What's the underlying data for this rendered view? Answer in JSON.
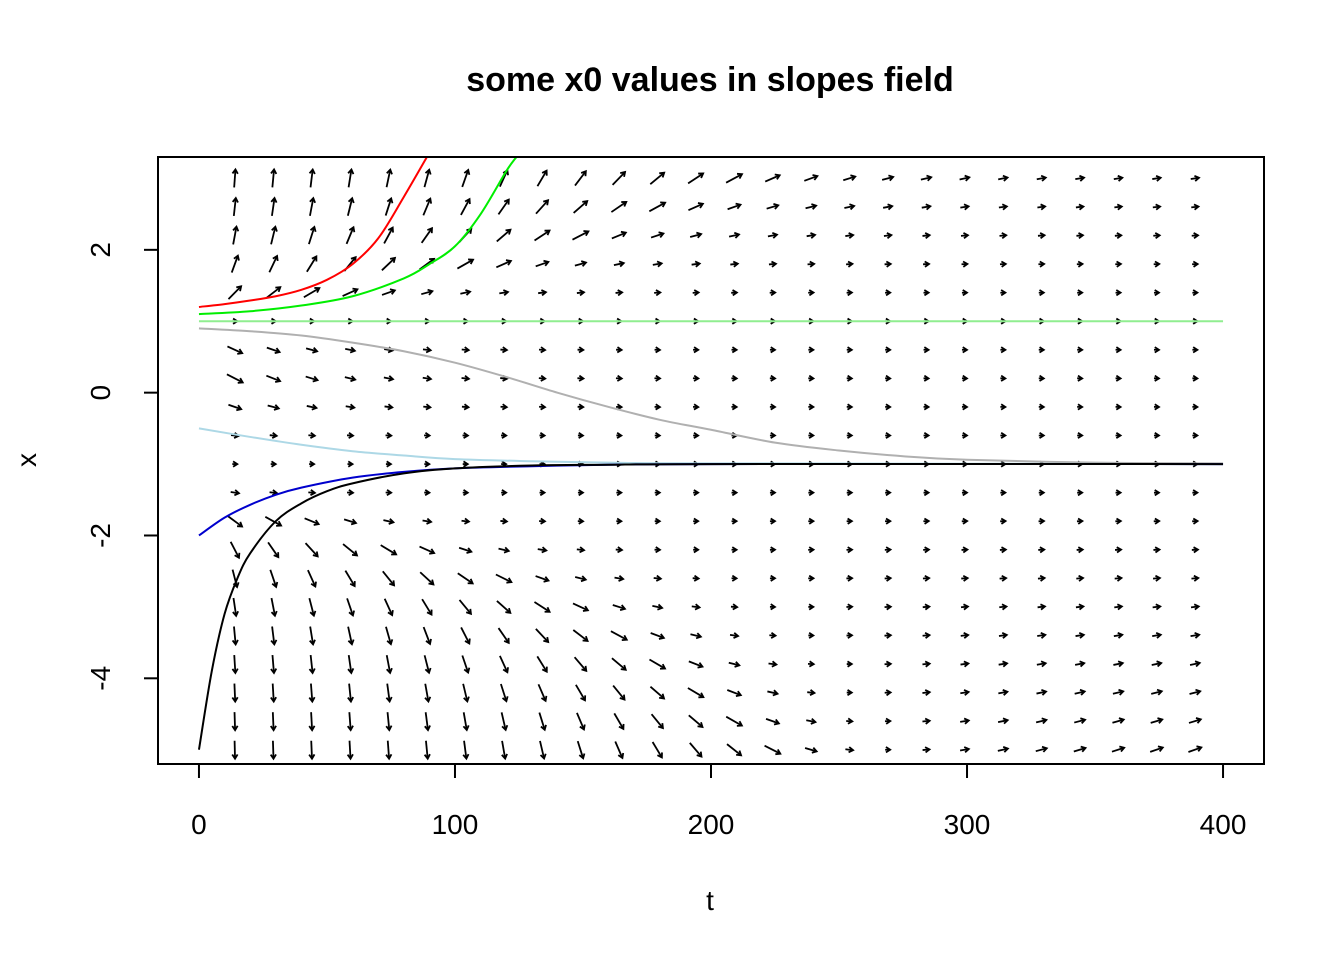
{
  "chart_data": {
    "type": "line",
    "title": "some x0 values in slopes field",
    "xlabel": "t",
    "ylabel": "x",
    "xlim": [
      -16,
      416
    ],
    "ylim": [
      -5.2,
      3.3
    ],
    "x_ticks": [
      {
        "value": 0,
        "label": "0"
      },
      {
        "value": 100,
        "label": "100"
      },
      {
        "value": 200,
        "label": "200"
      },
      {
        "value": 300,
        "label": "300"
      },
      {
        "value": 400,
        "label": "400"
      }
    ],
    "y_ticks": [
      {
        "value": -4,
        "label": "-4"
      },
      {
        "value": -2,
        "label": "-2"
      },
      {
        "value": 0,
        "label": "0"
      },
      {
        "value": 2,
        "label": "2"
      }
    ],
    "grid": false,
    "legend": "none",
    "series": [
      {
        "color": "#ff0000",
        "x0": 1.2,
        "points": [
          [
            0,
            1.2
          ],
          [
            10,
            1.24
          ],
          [
            20,
            1.29
          ],
          [
            30,
            1.35
          ],
          [
            40,
            1.44
          ],
          [
            50,
            1.58
          ],
          [
            60,
            1.8
          ],
          [
            70,
            2.16
          ],
          [
            80,
            2.74
          ],
          [
            90,
            3.36
          ]
        ]
      },
      {
        "color": "#00ee00",
        "x0": 1.1,
        "points": [
          [
            0,
            1.1
          ],
          [
            20,
            1.14
          ],
          [
            40,
            1.22
          ],
          [
            60,
            1.35
          ],
          [
            80,
            1.6
          ],
          [
            90,
            1.8
          ],
          [
            100,
            2.05
          ],
          [
            110,
            2.5
          ],
          [
            120,
            3.1
          ],
          [
            124,
            3.3
          ]
        ]
      },
      {
        "color": "#90ee90",
        "x0": 1.0,
        "points": [
          [
            0,
            1.0
          ],
          [
            400,
            1.0
          ]
        ]
      },
      {
        "color": "#b0b0b0",
        "x0": 0.9,
        "points": [
          [
            0,
            0.9
          ],
          [
            20,
            0.86
          ],
          [
            40,
            0.8
          ],
          [
            60,
            0.7
          ],
          [
            80,
            0.58
          ],
          [
            100,
            0.42
          ],
          [
            120,
            0.22
          ],
          [
            140,
            0.0
          ],
          [
            160,
            -0.2
          ],
          [
            180,
            -0.38
          ],
          [
            200,
            -0.52
          ],
          [
            225,
            -0.7
          ],
          [
            250,
            -0.81
          ],
          [
            275,
            -0.89
          ],
          [
            300,
            -0.94
          ],
          [
            350,
            -0.98
          ],
          [
            400,
            -0.99
          ]
        ]
      },
      {
        "color": "#add8e6",
        "x0": -0.5,
        "points": [
          [
            0,
            -0.5
          ],
          [
            20,
            -0.62
          ],
          [
            40,
            -0.73
          ],
          [
            60,
            -0.82
          ],
          [
            80,
            -0.88
          ],
          [
            100,
            -0.93
          ],
          [
            130,
            -0.96
          ],
          [
            160,
            -0.98
          ],
          [
            200,
            -0.99
          ],
          [
            400,
            -1.0
          ]
        ]
      },
      {
        "color": "#0000cd",
        "x0": -2.0,
        "points": [
          [
            0,
            -2.0
          ],
          [
            10,
            -1.75
          ],
          [
            20,
            -1.57
          ],
          [
            30,
            -1.43
          ],
          [
            40,
            -1.33
          ],
          [
            60,
            -1.19
          ],
          [
            80,
            -1.11
          ],
          [
            100,
            -1.06
          ],
          [
            130,
            -1.03
          ],
          [
            160,
            -1.01
          ],
          [
            200,
            -1.0
          ],
          [
            400,
            -1.0
          ]
        ]
      },
      {
        "color": "#000000",
        "x0": -5.0,
        "points": [
          [
            0,
            -5.0
          ],
          [
            5,
            -3.9
          ],
          [
            10,
            -3.1
          ],
          [
            15,
            -2.6
          ],
          [
            20,
            -2.25
          ],
          [
            30,
            -1.8
          ],
          [
            40,
            -1.55
          ],
          [
            50,
            -1.38
          ],
          [
            60,
            -1.27
          ],
          [
            80,
            -1.13
          ],
          [
            100,
            -1.06
          ],
          [
            130,
            -1.02
          ],
          [
            160,
            -1.01
          ],
          [
            200,
            -1.0
          ],
          [
            400,
            -1.0
          ]
        ]
      }
    ],
    "slope_field": {
      "t_values": [
        14,
        29,
        44,
        59,
        74,
        89,
        104,
        119,
        134,
        149,
        164,
        179,
        194,
        209,
        224,
        239,
        254,
        269,
        284,
        299,
        314,
        329,
        344,
        359,
        374,
        389
      ],
      "x_values": [
        3,
        2.6,
        2.2,
        1.8,
        1.4,
        1.0,
        0.6,
        0.2,
        -0.2,
        -0.6,
        -1.0,
        -1.4,
        -1.8,
        -2.2,
        -2.6,
        -3.0,
        -3.4,
        -3.8,
        -4.2,
        -4.6,
        -5.0
      ],
      "arrow_color": "#000000"
    }
  }
}
